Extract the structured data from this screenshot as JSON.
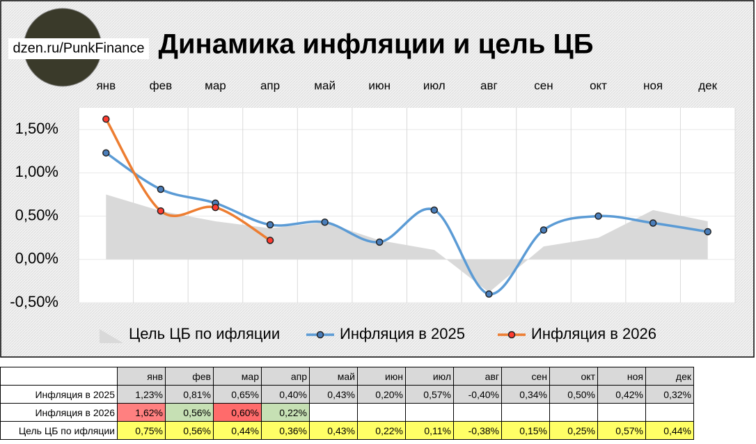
{
  "chart_data": {
    "type": "line",
    "title": "Динамика инфляции и цель ЦБ",
    "watermark": "dzen.ru/PunkFinance",
    "categories": [
      "янв",
      "фев",
      "мар",
      "апр",
      "май",
      "июн",
      "июл",
      "авг",
      "сен",
      "окт",
      "ноя",
      "дек"
    ],
    "series": [
      {
        "name": "Цель ЦБ по ифляции",
        "type": "area",
        "color": "#d9d9d9",
        "values": [
          0.75,
          0.56,
          0.44,
          0.36,
          0.43,
          0.22,
          0.11,
          -0.38,
          0.15,
          0.25,
          0.57,
          0.44
        ]
      },
      {
        "name": "Инфляция в 2025",
        "type": "line",
        "color": "#5b9bd5",
        "marker_color": "#4a7ebb",
        "values": [
          1.23,
          0.81,
          0.65,
          0.4,
          0.43,
          0.2,
          0.57,
          -0.4,
          0.34,
          0.5,
          0.42,
          0.32
        ]
      },
      {
        "name": "Инфляция в 2026",
        "type": "line",
        "color": "#ed7d31",
        "marker_color": "#ff3b30",
        "values": [
          1.62,
          0.56,
          0.6,
          0.22,
          null,
          null,
          null,
          null,
          null,
          null,
          null,
          null
        ]
      }
    ],
    "ylim": [
      -0.5,
      1.75
    ],
    "yticks": [
      {
        "value": -0.5,
        "label": "-0,50%"
      },
      {
        "value": 0,
        "label": "0,00%"
      },
      {
        "value": 0.5,
        "label": "0,50%"
      },
      {
        "value": 1,
        "label": "1,00%"
      },
      {
        "value": 1.5,
        "label": "1,50%"
      }
    ],
    "grid": true,
    "legend": "bottom"
  },
  "table": {
    "rows": [
      [
        "1,23%",
        "0,81%",
        "0,65%",
        "0,40%",
        "0,43%",
        "0,20%",
        "0,57%",
        "-0,40%",
        "0,34%",
        "0,50%",
        "0,42%",
        "0,32%"
      ],
      [
        "1,62%",
        "0,56%",
        "0,60%",
        "0,22%"
      ],
      [
        "0,75%",
        "0,56%",
        "0,44%",
        "0,36%",
        "0,43%",
        "0,22%",
        "0,11%",
        "-0,38%",
        "0,15%",
        "0,25%",
        "0,57%",
        "0,44%"
      ]
    ]
  }
}
